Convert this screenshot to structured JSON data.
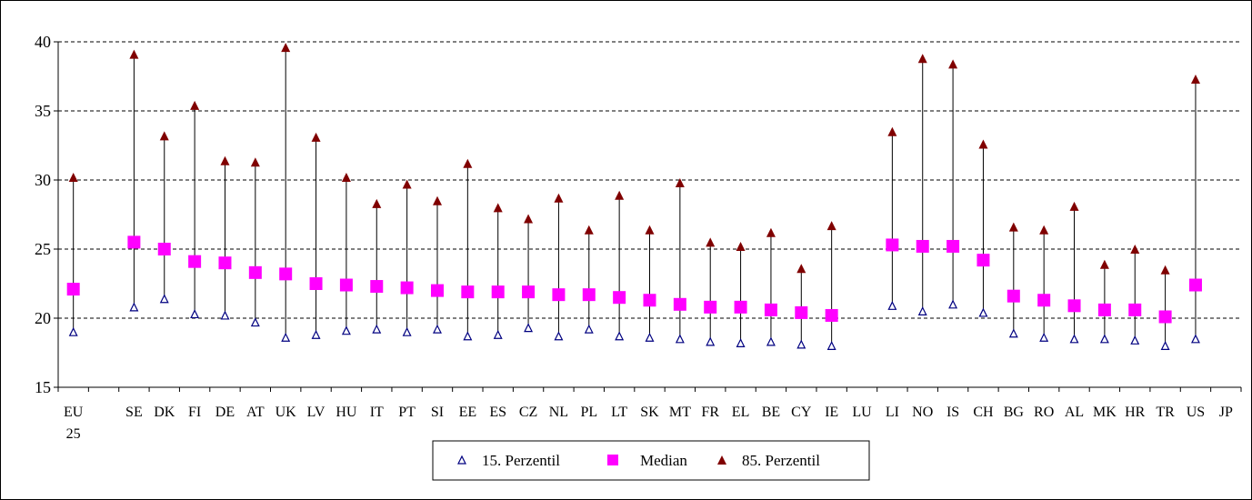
{
  "chart_data": {
    "type": "scatter",
    "title": "",
    "xlabel": "",
    "ylabel": "",
    "ylim": [
      15,
      40
    ],
    "yticks": [
      15,
      20,
      25,
      30,
      35,
      40
    ],
    "grid": "horizontal dashed",
    "legend_position": "bottom-center",
    "categories": [
      "EU 25",
      "",
      "SE",
      "DK",
      "FI",
      "DE",
      "AT",
      "UK",
      "LV",
      "HU",
      "IT",
      "PT",
      "SI",
      "EE",
      "ES",
      "CZ",
      "NL",
      "PL",
      "LT",
      "SK",
      "MT",
      "FR",
      "EL",
      "BE",
      "CY",
      "IE",
      "LU",
      "LI",
      "NO",
      "IS",
      "CH",
      "BG",
      "RO",
      "AL",
      "MK",
      "HR",
      "TR",
      "US",
      "JP"
    ],
    "series": [
      {
        "name": "15. Perzentil",
        "marker": "triangle-open",
        "color": "#000080",
        "values": [
          19.0,
          null,
          20.8,
          21.4,
          20.3,
          20.2,
          19.7,
          18.6,
          18.8,
          19.1,
          19.2,
          19.0,
          19.2,
          18.7,
          18.8,
          19.3,
          18.7,
          19.2,
          18.7,
          18.6,
          18.5,
          18.3,
          18.2,
          18.3,
          18.1,
          18.0,
          null,
          20.9,
          20.5,
          21.0,
          20.4,
          18.9,
          18.6,
          18.5,
          18.5,
          18.4,
          18.0,
          18.5,
          null
        ]
      },
      {
        "name": "Median",
        "marker": "square",
        "color": "#ff00ff",
        "values": [
          22.1,
          null,
          25.5,
          25.0,
          24.1,
          24.0,
          23.3,
          23.2,
          22.5,
          22.4,
          22.3,
          22.2,
          22.0,
          21.9,
          21.9,
          21.9,
          21.7,
          21.7,
          21.5,
          21.3,
          21.0,
          20.8,
          20.8,
          20.6,
          20.4,
          20.2,
          null,
          25.3,
          25.2,
          25.2,
          24.2,
          21.6,
          21.3,
          20.9,
          20.6,
          20.6,
          20.1,
          22.4,
          null
        ]
      },
      {
        "name": "85. Perzentil",
        "marker": "triangle-filled",
        "color": "#800000",
        "values": [
          30.2,
          null,
          39.1,
          33.2,
          35.4,
          31.4,
          31.3,
          39.6,
          33.1,
          30.2,
          28.3,
          29.7,
          28.5,
          31.2,
          28.0,
          27.2,
          28.7,
          26.4,
          28.9,
          26.4,
          29.8,
          25.5,
          25.2,
          26.2,
          23.6,
          26.7,
          null,
          33.5,
          38.8,
          38.4,
          32.6,
          26.6,
          26.4,
          28.1,
          23.9,
          25.0,
          23.5,
          37.3,
          null
        ]
      }
    ]
  },
  "legend": {
    "items": [
      {
        "label": "15. Perzentil",
        "marker": "triangle-open"
      },
      {
        "label": "Median",
        "marker": "square"
      },
      {
        "label": "85. Perzentil",
        "marker": "triangle-filled"
      }
    ]
  },
  "colors": {
    "p15": "#000080",
    "median": "#ff00ff",
    "p85": "#800000",
    "grid": "#000000",
    "axis": "#000000"
  }
}
